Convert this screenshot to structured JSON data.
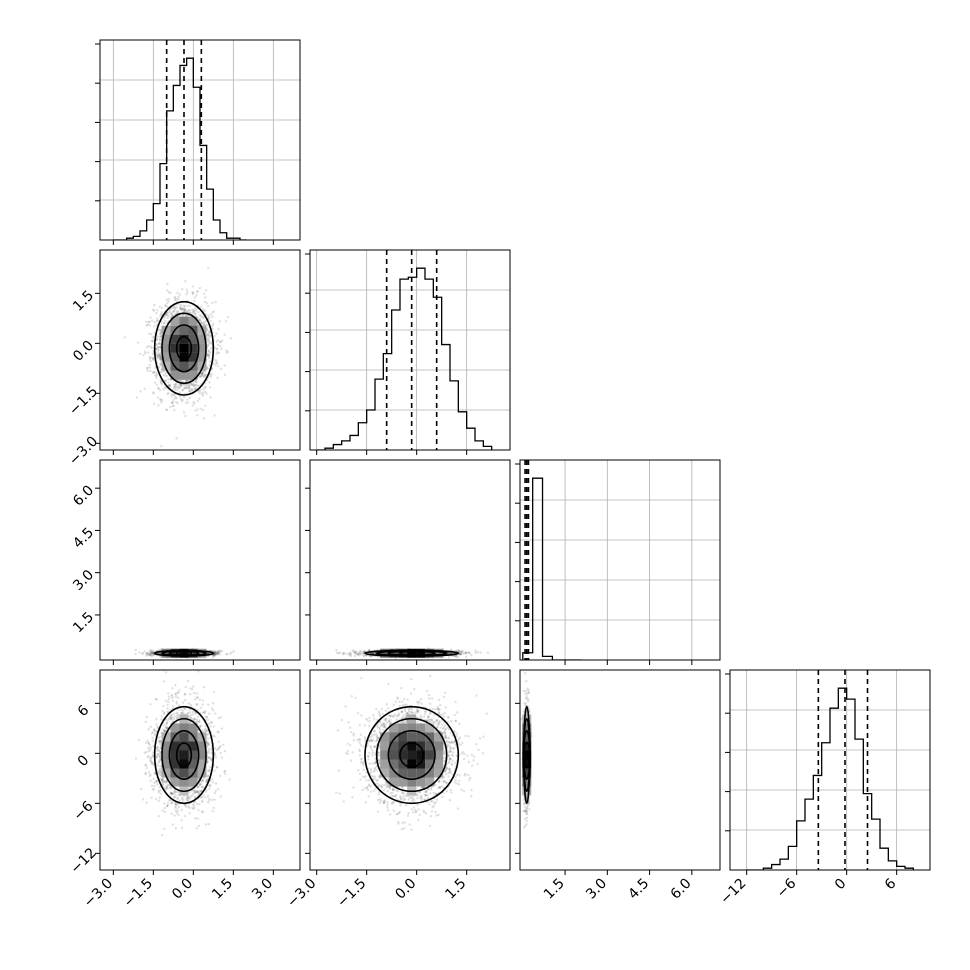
{
  "chart_data": {
    "type": "corner",
    "n_params": 4,
    "grid": true,
    "params": [
      {
        "range": [
          -3.5,
          4.0
        ],
        "ticks": [
          -3.0,
          -1.5,
          0.0,
          1.5,
          3.0
        ],
        "tick_labels": [
          "−3.0",
          "−1.5",
          "0.0",
          "1.5",
          "3.0"
        ],
        "quantiles": [
          -1.0,
          -0.35,
          0.3
        ],
        "hist": {
          "edges": [
            -3.0,
            -2.75,
            -2.5,
            -2.25,
            -2.0,
            -1.75,
            -1.5,
            -1.25,
            -1.0,
            -0.75,
            -0.5,
            -0.25,
            0.0,
            0.25,
            0.5,
            0.75,
            1.0,
            1.25,
            1.5,
            1.75,
            2.0
          ],
          "counts": [
            0.0,
            0.0,
            0.01,
            0.02,
            0.05,
            0.11,
            0.2,
            0.42,
            0.71,
            0.85,
            0.96,
            1.0,
            0.84,
            0.52,
            0.28,
            0.11,
            0.04,
            0.01,
            0.01,
            0.0
          ]
        }
      },
      {
        "range": [
          -3.2,
          2.8
        ],
        "ticks": [
          -3.0,
          -1.5,
          0.0,
          1.5
        ],
        "tick_labels": [
          "−3.0",
          "−1.5",
          "0.0",
          "1.5"
        ],
        "quantiles": [
          -0.9,
          -0.15,
          0.6
        ],
        "hist": {
          "edges": [
            -3.0,
            -2.75,
            -2.5,
            -2.25,
            -2.0,
            -1.75,
            -1.5,
            -1.25,
            -1.0,
            -0.75,
            -0.5,
            -0.25,
            0.0,
            0.25,
            0.5,
            0.75,
            1.0,
            1.25,
            1.5,
            1.75,
            2.0,
            2.25
          ],
          "counts": [
            0.0,
            0.01,
            0.03,
            0.05,
            0.08,
            0.15,
            0.22,
            0.39,
            0.53,
            0.77,
            0.94,
            0.95,
            1.0,
            0.94,
            0.84,
            0.58,
            0.38,
            0.21,
            0.12,
            0.05,
            0.02
          ]
        }
      },
      {
        "range": [
          -0.1,
          7.0
        ],
        "ticks": [
          1.5,
          3.0,
          4.5,
          6.0
        ],
        "tick_labels": [
          "1.5",
          "3.0",
          "4.5",
          "6.0"
        ],
        "quantiles": [
          0.08,
          0.14,
          0.2
        ],
        "hist": {
          "edges": [
            0.0,
            0.35,
            0.7,
            1.05,
            1.4,
            1.75,
            2.1
          ],
          "counts": [
            0.04,
            1.0,
            0.02,
            0.0,
            0.0,
            0.0
          ]
        }
      },
      {
        "range": [
          -14.0,
          10.0
        ],
        "ticks": [
          -12,
          -6,
          0,
          6
        ],
        "tick_labels": [
          "−12",
          "−6",
          "0",
          "6"
        ],
        "quantiles": [
          -3.4,
          -0.2,
          2.5
        ],
        "hist": {
          "edges": [
            -12,
            -11,
            -10,
            -9,
            -8,
            -7,
            -6,
            -5,
            -4,
            -3,
            -2,
            -1,
            0,
            1,
            2,
            3,
            4,
            5,
            6,
            7,
            8
          ],
          "counts": [
            0.0,
            0.0,
            0.01,
            0.03,
            0.06,
            0.13,
            0.27,
            0.39,
            0.52,
            0.7,
            0.89,
            1.0,
            0.94,
            0.72,
            0.42,
            0.28,
            0.12,
            0.05,
            0.02,
            0.01
          ]
        }
      }
    ],
    "pairs": [
      {
        "row": 1,
        "col": 0,
        "center": [
          -0.35,
          -0.15
        ],
        "sigma": [
          0.55,
          0.7
        ],
        "points": 2200
      },
      {
        "row": 2,
        "col": 0,
        "center": [
          -0.35,
          0.14
        ],
        "sigma": [
          0.55,
          0.05
        ],
        "points": 1500
      },
      {
        "row": 2,
        "col": 1,
        "center": [
          -0.15,
          0.14
        ],
        "sigma": [
          0.7,
          0.05
        ],
        "points": 1500
      },
      {
        "row": 3,
        "col": 0,
        "center": [
          -0.35,
          -0.2
        ],
        "sigma": [
          0.55,
          2.9
        ],
        "points": 2200
      },
      {
        "row": 3,
        "col": 1,
        "center": [
          -0.15,
          -0.2
        ],
        "sigma": [
          0.7,
          2.9
        ],
        "points": 2200
      },
      {
        "row": 3,
        "col": 2,
        "center": [
          0.14,
          -0.2
        ],
        "sigma": [
          0.05,
          2.9
        ],
        "points": 1200
      }
    ]
  }
}
